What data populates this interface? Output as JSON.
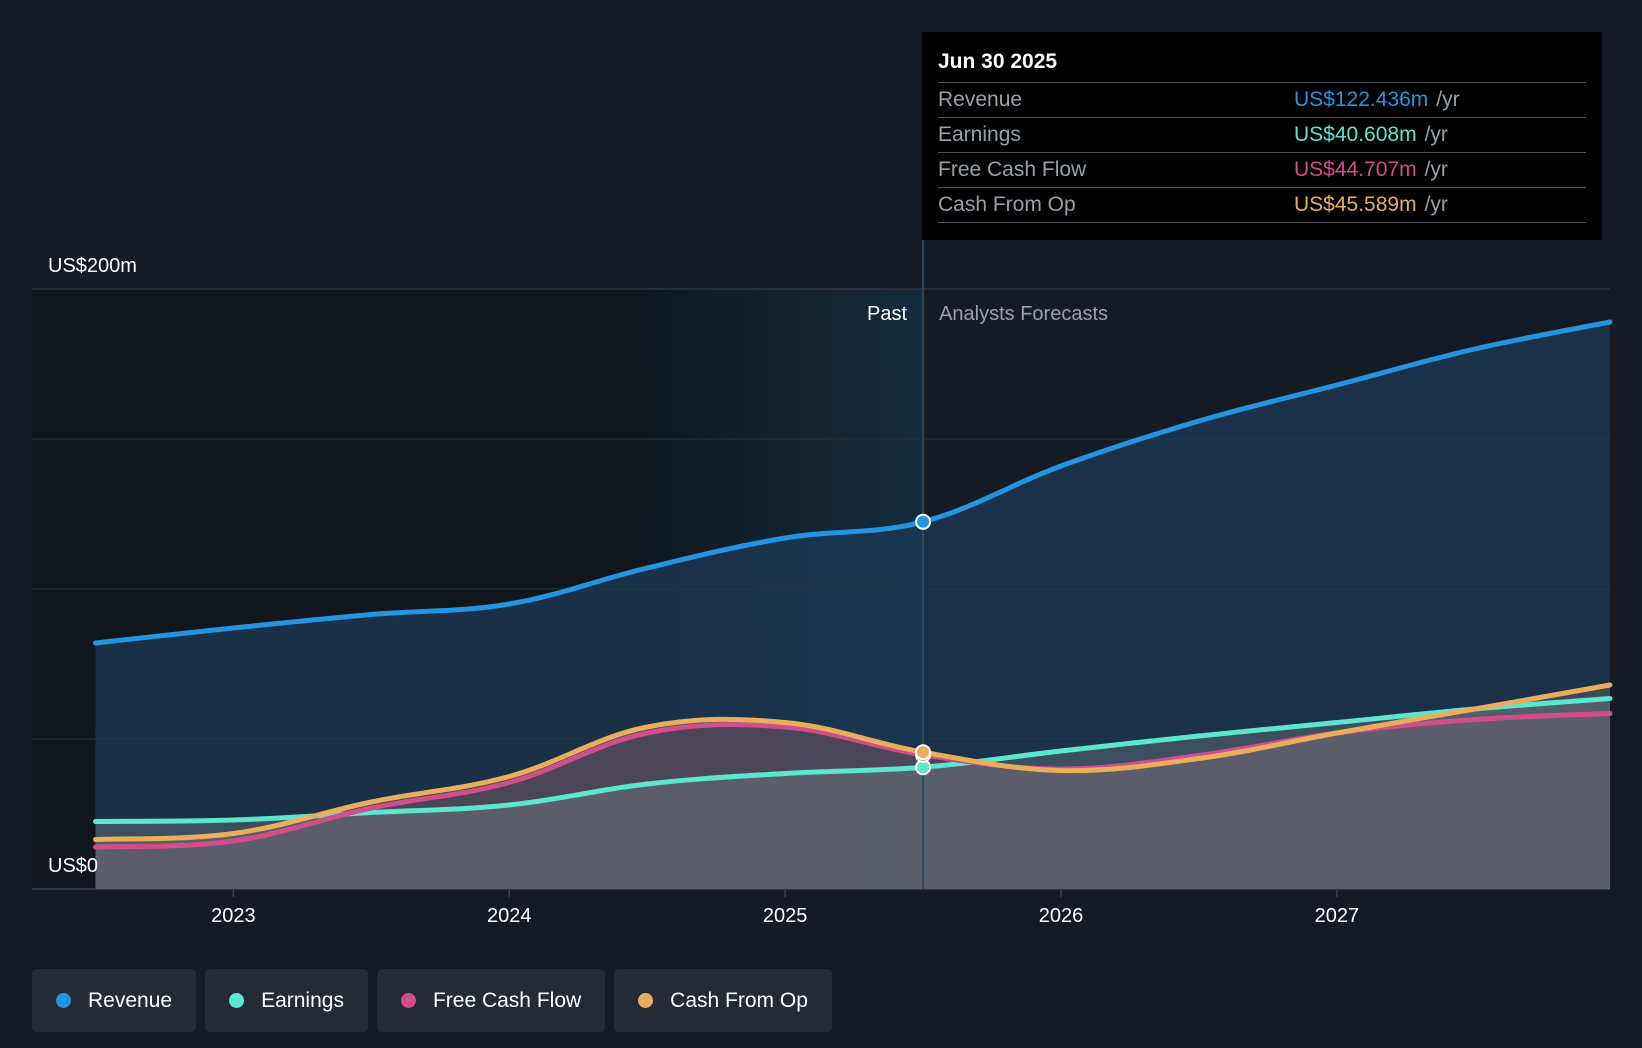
{
  "chart_data": {
    "type": "area",
    "y_axis": {
      "top_label": "US$200m",
      "bottom_label": "US$0",
      "ylim": [
        0,
        200
      ]
    },
    "x_axis": {
      "tick_labels": [
        "2023",
        "2024",
        "2025",
        "2026",
        "2027"
      ],
      "tick_values": [
        2023,
        2024,
        2025,
        2026,
        2027
      ],
      "xlim": [
        2022.27,
        2027.99
      ]
    },
    "past_label": "Past",
    "forecast_label": "Analysts Forecasts",
    "divider_x": 2025.5,
    "highlight_start_x": 2024.5,
    "series": [
      {
        "name": "Revenue",
        "color": "#2394e0",
        "points": [
          [
            2022.5,
            82
          ],
          [
            2023.0,
            87
          ],
          [
            2023.5,
            91.5
          ],
          [
            2024.0,
            95
          ],
          [
            2024.5,
            107
          ],
          [
            2025.0,
            117
          ],
          [
            2025.5,
            122.4
          ],
          [
            2026.0,
            141
          ],
          [
            2026.5,
            156
          ],
          [
            2027.0,
            168
          ],
          [
            2027.5,
            180
          ],
          [
            2027.99,
            189
          ]
        ]
      },
      {
        "name": "Earnings",
        "color": "#5ce5cf",
        "points": [
          [
            2022.5,
            22.5
          ],
          [
            2023.0,
            23
          ],
          [
            2023.5,
            25.5
          ],
          [
            2024.0,
            28
          ],
          [
            2024.5,
            35
          ],
          [
            2025.0,
            38.5
          ],
          [
            2025.5,
            40.6
          ],
          [
            2026.0,
            46
          ],
          [
            2026.5,
            51
          ],
          [
            2027.0,
            55.5
          ],
          [
            2027.5,
            60
          ],
          [
            2027.99,
            63.5
          ]
        ]
      },
      {
        "name": "Free Cash Flow",
        "color": "#d14e8a",
        "points": [
          [
            2022.5,
            14
          ],
          [
            2023.0,
            16
          ],
          [
            2023.5,
            27
          ],
          [
            2024.0,
            35.5
          ],
          [
            2024.5,
            52
          ],
          [
            2025.0,
            54
          ],
          [
            2025.5,
            44.7
          ],
          [
            2026.0,
            40
          ],
          [
            2026.5,
            44.5
          ],
          [
            2027.0,
            52
          ],
          [
            2027.5,
            56.5
          ],
          [
            2027.99,
            58.5
          ]
        ]
      },
      {
        "name": "Cash From Op",
        "color": "#e9ae5c",
        "points": [
          [
            2022.5,
            16.5
          ],
          [
            2023.0,
            18.5
          ],
          [
            2023.5,
            29
          ],
          [
            2024.0,
            37.5
          ],
          [
            2024.5,
            54
          ],
          [
            2025.0,
            55.5
          ],
          [
            2025.5,
            45.6
          ],
          [
            2026.0,
            39.5
          ],
          [
            2026.5,
            43.5
          ],
          [
            2027.0,
            52
          ],
          [
            2027.5,
            60
          ],
          [
            2027.99,
            68
          ]
        ]
      }
    ]
  },
  "tooltip": {
    "date": "Jun 30 2025",
    "unit": "/yr",
    "rows": [
      {
        "label": "Revenue",
        "value": "US$122.436m",
        "color": "#2394e0"
      },
      {
        "label": "Earnings",
        "value": "US$40.608m",
        "color": "#5ce5cf"
      },
      {
        "label": "Free Cash Flow",
        "value": "US$44.707m",
        "color": "#d14e8a"
      },
      {
        "label": "Cash From Op",
        "value": "US$45.589m",
        "color": "#e9ae5c"
      }
    ]
  },
  "legend": [
    {
      "label": "Revenue",
      "color": "#2394e0"
    },
    {
      "label": "Earnings",
      "color": "#5ce5cf"
    },
    {
      "label": "Free Cash Flow",
      "color": "#d14e8a"
    },
    {
      "label": "Cash From Op",
      "color": "#e9ae5c"
    }
  ]
}
